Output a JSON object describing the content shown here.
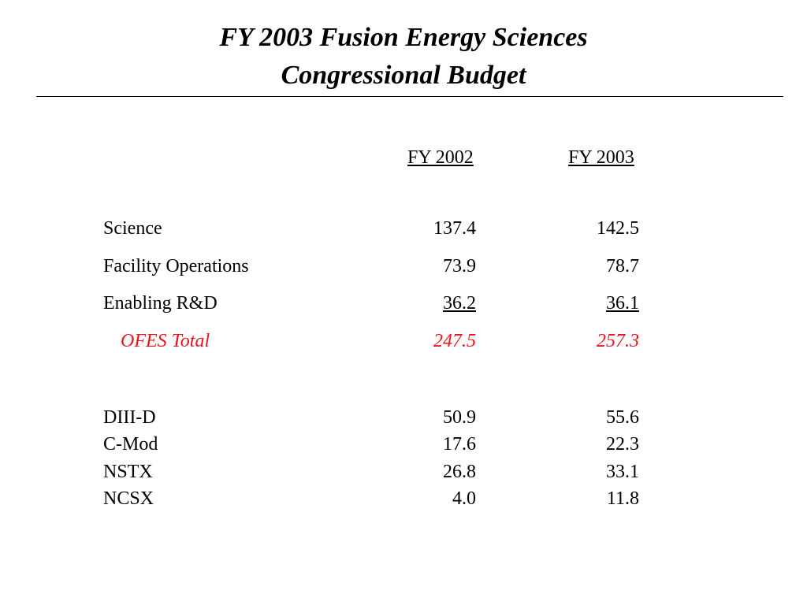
{
  "title": {
    "line1": "FY 2003 Fusion Energy Sciences",
    "line2": "Congressional Budget"
  },
  "columns": {
    "fy2002": "FY 2002",
    "fy2003": "FY 2003"
  },
  "budget_rows": [
    {
      "label": "Science",
      "fy2002": "137.4",
      "fy2003": "142.5"
    },
    {
      "label": "Facility Operations",
      "fy2002": "73.9",
      "fy2003": "78.7"
    },
    {
      "label": "Enabling R&D",
      "fy2002": "36.2",
      "fy2003": "36.1"
    }
  ],
  "total": {
    "label": "OFES Total",
    "fy2002": "247.5",
    "fy2003": "257.3",
    "color": "#e8141b"
  },
  "facility_rows": [
    {
      "label": "DIII-D",
      "fy2002": "50.9",
      "fy2003": "55.6"
    },
    {
      "label": "C-Mod",
      "fy2002": "17.6",
      "fy2003": "22.3"
    },
    {
      "label": "NSTX",
      "fy2002": "26.8",
      "fy2003": "33.1"
    },
    {
      "label": "NCSX",
      "fy2002": "4.0",
      "fy2003": "11.8"
    }
  ]
}
